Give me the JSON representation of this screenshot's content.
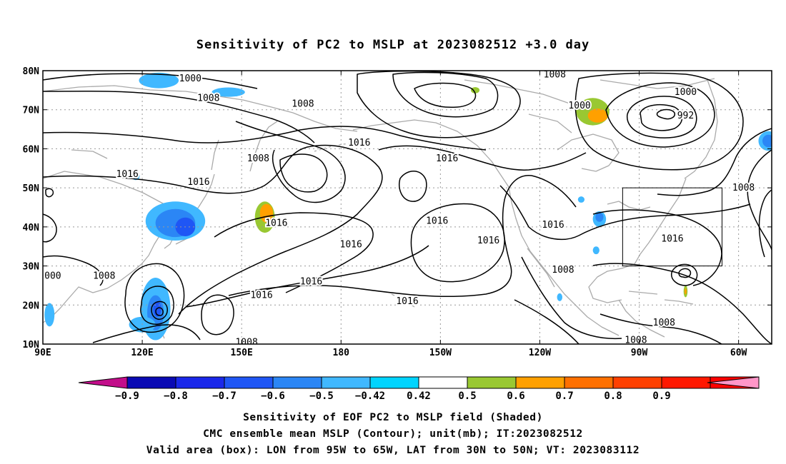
{
  "title": "Sensitivity of PC2 to MSLP at 2023082512 +3.0 day",
  "map": {
    "lat_labels": [
      "80N",
      "70N",
      "60N",
      "50N",
      "40N",
      "30N",
      "20N",
      "10N"
    ],
    "lon_labels": [
      "90E",
      "120E",
      "150E",
      "180",
      "150W",
      "120W",
      "90W",
      "60W"
    ],
    "lon_range_deg_east": [
      90,
      310
    ],
    "lat_range_deg_north": [
      10,
      80
    ],
    "grid": "dotted",
    "colors": {
      "contour": "#000000",
      "coastline": "#aaaaaa",
      "box": "#000000"
    }
  },
  "contour_labels": [
    {
      "text": "1000",
      "lon": 134.5,
      "lat": 78.0
    },
    {
      "text": "1008",
      "lon": 140.0,
      "lat": 73.0
    },
    {
      "text": "1008",
      "lon": 244.5,
      "lat": 79.0
    },
    {
      "text": "1000",
      "lon": 252.0,
      "lat": 71.0
    },
    {
      "text": "1000",
      "lon": 284.0,
      "lat": 74.5
    },
    {
      "text": "992",
      "lon": 284.0,
      "lat": 68.5
    },
    {
      "text": "1008",
      "lon": 168.5,
      "lat": 71.5
    },
    {
      "text": "1016",
      "lon": 185.5,
      "lat": 61.5
    },
    {
      "text": "1016",
      "lon": 212.0,
      "lat": 57.5
    },
    {
      "text": "1008",
      "lon": 155.0,
      "lat": 57.5
    },
    {
      "text": "1016",
      "lon": 115.5,
      "lat": 53.5
    },
    {
      "text": "1016",
      "lon": 137.0,
      "lat": 51.5
    },
    {
      "text": "1016",
      "lon": 160.5,
      "lat": 41.0
    },
    {
      "text": "1016",
      "lon": 209.0,
      "lat": 41.5
    },
    {
      "text": "1016",
      "lon": 183.0,
      "lat": 35.5
    },
    {
      "text": "1016",
      "lon": 224.5,
      "lat": 36.5
    },
    {
      "text": "1016",
      "lon": 244.0,
      "lat": 40.5
    },
    {
      "text": "1016",
      "lon": 280.0,
      "lat": 37.0
    },
    {
      "text": "1008",
      "lon": 301.5,
      "lat": 50.0
    },
    {
      "text": "1008",
      "lon": 247.0,
      "lat": 29.0
    },
    {
      "text": "1016",
      "lon": 171.0,
      "lat": 26.0
    },
    {
      "text": "1016",
      "lon": 156.0,
      "lat": 22.5
    },
    {
      "text": "1016",
      "lon": 200.0,
      "lat": 21.0
    },
    {
      "text": "1008",
      "lon": 277.5,
      "lat": 15.5
    },
    {
      "text": "1008",
      "lon": 269.0,
      "lat": 11.0
    },
    {
      "text": "1008",
      "lon": 108.5,
      "lat": 27.5
    },
    {
      "text": "000",
      "lon": 93.0,
      "lat": 27.5
    },
    {
      "text": "1008",
      "lon": 151.5,
      "lat": 10.5
    }
  ],
  "shaded_regions": [
    {
      "level": "-0.5",
      "lon": 125,
      "lat": 77.5,
      "rlon": 6,
      "rlat": 2.0
    },
    {
      "level": "-0.5",
      "lon": 146,
      "lat": 74.5,
      "rlon": 5,
      "rlat": 1.2
    },
    {
      "level": "-0.5",
      "lon": 130,
      "lat": 41.5,
      "rlon": 9,
      "rlat": 5.0
    },
    {
      "level": "-0.6",
      "lon": 130,
      "lat": 41.0,
      "rlon": 6,
      "rlat": 3.6
    },
    {
      "level": "-0.7",
      "lon": 133,
      "lat": 40.0,
      "rlon": 3,
      "rlat": 2.4
    },
    {
      "level": "-0.5",
      "lon": 124,
      "lat": 19.0,
      "rlon": 4.5,
      "rlat": 8.0
    },
    {
      "level": "-0.6",
      "lon": 124,
      "lat": 18.0,
      "rlon": 2.5,
      "rlat": 4.5
    },
    {
      "level": "-0.7",
      "lon": 124.5,
      "lat": 19.0,
      "rlon": 1.2,
      "rlat": 2.0
    },
    {
      "level": "-0.5",
      "lon": 120,
      "lat": 15.0,
      "rlon": 4,
      "rlat": 2.0
    },
    {
      "level": "-0.5",
      "lon": 92,
      "lat": 17.5,
      "rlon": 1.5,
      "rlat": 3.0
    },
    {
      "level": "-0.5",
      "lon": 118,
      "lat": 53.0,
      "rlon": 1.2,
      "rlat": 1.0
    },
    {
      "level": "-0.5",
      "lon": 309,
      "lat": 62.0,
      "rlon": 3,
      "rlat": 2.5
    },
    {
      "level": "-0.6",
      "lon": 309,
      "lat": 62.0,
      "rlon": 1.8,
      "rlat": 1.6
    },
    {
      "level": "-0.5",
      "lon": 258,
      "lat": 42.0,
      "rlon": 2,
      "rlat": 2.0
    },
    {
      "level": "-0.6",
      "lon": 258,
      "lat": 42.5,
      "rlon": 1.2,
      "rlat": 1.2
    },
    {
      "level": "-0.5",
      "lon": 257,
      "lat": 34.0,
      "rlon": 1,
      "rlat": 1.0
    },
    {
      "level": "-0.5",
      "lon": 252.5,
      "lat": 47.0,
      "rlon": 1,
      "rlat": 0.8
    },
    {
      "level": "-0.5",
      "lon": 246,
      "lat": 22.0,
      "rlon": 0.8,
      "rlat": 1.0
    },
    {
      "level": "0.5",
      "lon": 157,
      "lat": 42.5,
      "rlon": 3,
      "rlat": 4.0
    },
    {
      "level": "0.6",
      "lon": 157.5,
      "lat": 43.5,
      "rlon": 2,
      "rlat": 2.4
    },
    {
      "level": "0.5",
      "lon": 256,
      "lat": 69.5,
      "rlon": 5,
      "rlat": 3.5
    },
    {
      "level": "0.6",
      "lon": 257.5,
      "lat": 68.5,
      "rlon": 3,
      "rlat": 1.8
    },
    {
      "level": "0.5",
      "lon": 220.5,
      "lat": 75.0,
      "rlon": 1.3,
      "rlat": 0.8
    },
    {
      "level": "0.5",
      "lon": 284,
      "lat": 23.5,
      "rlon": 0.6,
      "rlat": 1.5
    },
    {
      "level": "0.6",
      "lon": 284,
      "lat": 23.5,
      "rlon": 0.3,
      "rlat": 0.8
    }
  ],
  "valid_box": {
    "lon_min": 265,
    "lon_max": 295,
    "lat_min": 30,
    "lat_max": 50
  },
  "colorbar": {
    "levels": [
      "-0.9",
      "-0.8",
      "-0.7",
      "-0.6",
      "-0.5",
      "-0.42",
      "0.42",
      "0.5",
      "0.6",
      "0.7",
      "0.8",
      "0.9"
    ],
    "colors": [
      "#c20e8a",
      "#0a0ab4",
      "#1a28ea",
      "#1f56f5",
      "#2b86f5",
      "#40b8ff",
      "#00d4ff",
      "#ffffff",
      "#99c832",
      "#ffa000",
      "#ff7000",
      "#ff4000",
      "#ff1800",
      "#ff0000",
      "#ff96c8"
    ]
  },
  "captions": [
    "Sensitivity of EOF PC2 to MSLP field (Shaded)",
    "CMC ensemble mean MSLP (Contour); unit(mb); IT:2023082512",
    "Valid area (box): LON from 95W to 65W, LAT from 30N to 50N; VT: 2023083112"
  ]
}
